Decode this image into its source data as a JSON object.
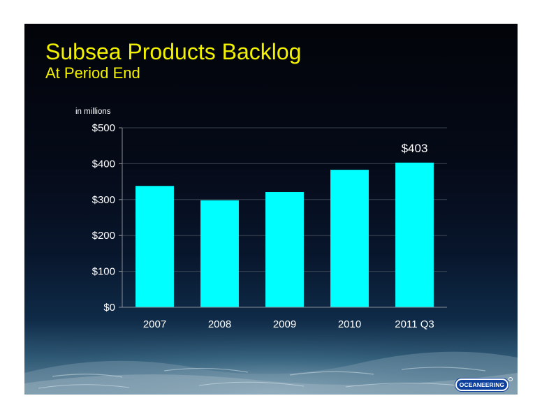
{
  "slide": {
    "title": "Subsea Products Backlog",
    "subtitle": "At Period End",
    "logo_text": "OCEANEERING"
  },
  "colors": {
    "title": "#f2f200",
    "bar": "#00ffff",
    "text": "#ffffff",
    "axis": "#8a8f96"
  },
  "chart_data": {
    "type": "bar",
    "title": "",
    "unit_label": "in millions",
    "categories": [
      "2007",
      "2008",
      "2009",
      "2010",
      "2011 Q3"
    ],
    "values": [
      338,
      298,
      321,
      383,
      403
    ],
    "ylim": [
      0,
      500
    ],
    "y_ticks": [
      0,
      100,
      200,
      300,
      400,
      500
    ],
    "y_tick_labels": [
      "$0",
      "$100",
      "$200",
      "$300",
      "$400",
      "$500"
    ],
    "data_labels": [
      {
        "category": "2011 Q3",
        "text": "$403"
      }
    ],
    "grid": false,
    "legend": "none"
  }
}
